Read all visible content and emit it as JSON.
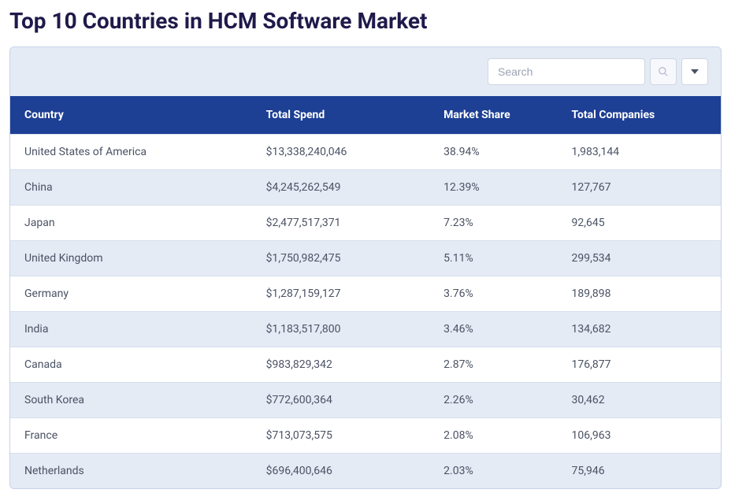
{
  "title": "Top 10 Countries in HCM Software Market",
  "search": {
    "placeholder": "Search"
  },
  "table": {
    "columns": [
      "Country",
      "Total Spend",
      "Market Share",
      "Total Companies"
    ],
    "rows": [
      {
        "country": "United States of America",
        "spend": "$13,338,240,046",
        "share": "38.94%",
        "companies": "1,983,144"
      },
      {
        "country": "China",
        "spend": "$4,245,262,549",
        "share": "12.39%",
        "companies": "127,767"
      },
      {
        "country": "Japan",
        "spend": "$2,477,517,371",
        "share": "7.23%",
        "companies": "92,645"
      },
      {
        "country": "United Kingdom",
        "spend": "$1,750,982,475",
        "share": "5.11%",
        "companies": "299,534"
      },
      {
        "country": "Germany",
        "spend": "$1,287,159,127",
        "share": "3.76%",
        "companies": "189,898"
      },
      {
        "country": "India",
        "spend": "$1,183,517,800",
        "share": "3.46%",
        "companies": "134,682"
      },
      {
        "country": "Canada",
        "spend": "$983,829,342",
        "share": "2.87%",
        "companies": "176,877"
      },
      {
        "country": "South Korea",
        "spend": "$772,600,364",
        "share": "2.26%",
        "companies": "30,462"
      },
      {
        "country": "France",
        "spend": "$713,073,575",
        "share": "2.08%",
        "companies": "106,963"
      },
      {
        "country": "Netherlands",
        "spend": "$696,400,646",
        "share": "2.03%",
        "companies": "75,946"
      }
    ]
  },
  "colors": {
    "title": "#1f1a4a",
    "header_bg": "#1d3f94",
    "header_text": "#ffffff",
    "row_odd": "#ffffff",
    "row_even": "#e4ebf5",
    "border": "#c6d3e8",
    "cell_text": "#4a5264"
  }
}
